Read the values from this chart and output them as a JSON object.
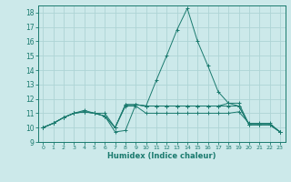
{
  "bg_color": "#cce9ea",
  "grid_color": "#aed4d5",
  "line_color": "#1a7a6e",
  "xlabel": "Humidex (Indice chaleur)",
  "xlim": [
    -0.5,
    23.5
  ],
  "ylim": [
    9,
    18.5
  ],
  "yticks": [
    9,
    10,
    11,
    12,
    13,
    14,
    15,
    16,
    17,
    18
  ],
  "xticks": [
    0,
    1,
    2,
    3,
    4,
    5,
    6,
    7,
    8,
    9,
    10,
    11,
    12,
    13,
    14,
    15,
    16,
    17,
    18,
    19,
    20,
    21,
    22,
    23
  ],
  "series": [
    {
      "x": [
        0,
        1,
        2,
        3,
        4,
        5,
        6,
        7,
        8,
        9,
        10,
        11,
        12,
        13,
        14,
        15,
        16,
        17,
        18,
        19,
        20,
        21,
        22,
        23
      ],
      "y": [
        10,
        10.3,
        10.7,
        11.0,
        11.1,
        11.0,
        10.8,
        10.0,
        11.5,
        11.5,
        11.0,
        11.0,
        11.0,
        11.0,
        11.0,
        11.0,
        11.0,
        11.0,
        11.0,
        11.1,
        10.3,
        10.3,
        10.3,
        9.7
      ]
    },
    {
      "x": [
        0,
        1,
        2,
        3,
        4,
        5,
        6,
        7,
        8,
        9,
        10,
        11,
        12,
        13,
        14,
        15,
        16,
        17,
        18,
        19,
        20,
        21,
        22,
        23
      ],
      "y": [
        10,
        10.3,
        10.7,
        11.0,
        11.1,
        11.0,
        10.8,
        10.0,
        11.6,
        11.6,
        11.5,
        11.5,
        11.5,
        11.5,
        11.5,
        11.5,
        11.5,
        11.5,
        11.5,
        11.5,
        10.2,
        10.2,
        10.2,
        9.7
      ]
    },
    {
      "x": [
        0,
        1,
        2,
        3,
        4,
        5,
        6,
        7,
        8,
        9,
        10,
        11,
        12,
        13,
        14,
        15,
        16,
        17,
        18,
        19,
        20,
        21,
        22,
        23
      ],
      "y": [
        10,
        10.3,
        10.7,
        11.0,
        11.1,
        11.0,
        11.0,
        10.0,
        11.6,
        11.6,
        11.5,
        11.5,
        11.5,
        11.5,
        11.5,
        11.5,
        11.5,
        11.5,
        11.7,
        11.7,
        10.2,
        10.2,
        10.2,
        9.7
      ]
    },
    {
      "x": [
        0,
        1,
        2,
        3,
        4,
        5,
        6,
        7,
        8,
        9,
        10,
        11,
        12,
        13,
        14,
        15,
        16,
        17,
        18,
        19,
        20,
        21,
        22,
        23
      ],
      "y": [
        10,
        10.3,
        10.7,
        11.0,
        11.2,
        11.0,
        10.8,
        9.7,
        9.8,
        11.6,
        11.5,
        13.3,
        15.0,
        16.8,
        18.3,
        16.0,
        14.3,
        12.5,
        11.7,
        11.5,
        10.2,
        10.2,
        10.2,
        9.7
      ]
    }
  ]
}
